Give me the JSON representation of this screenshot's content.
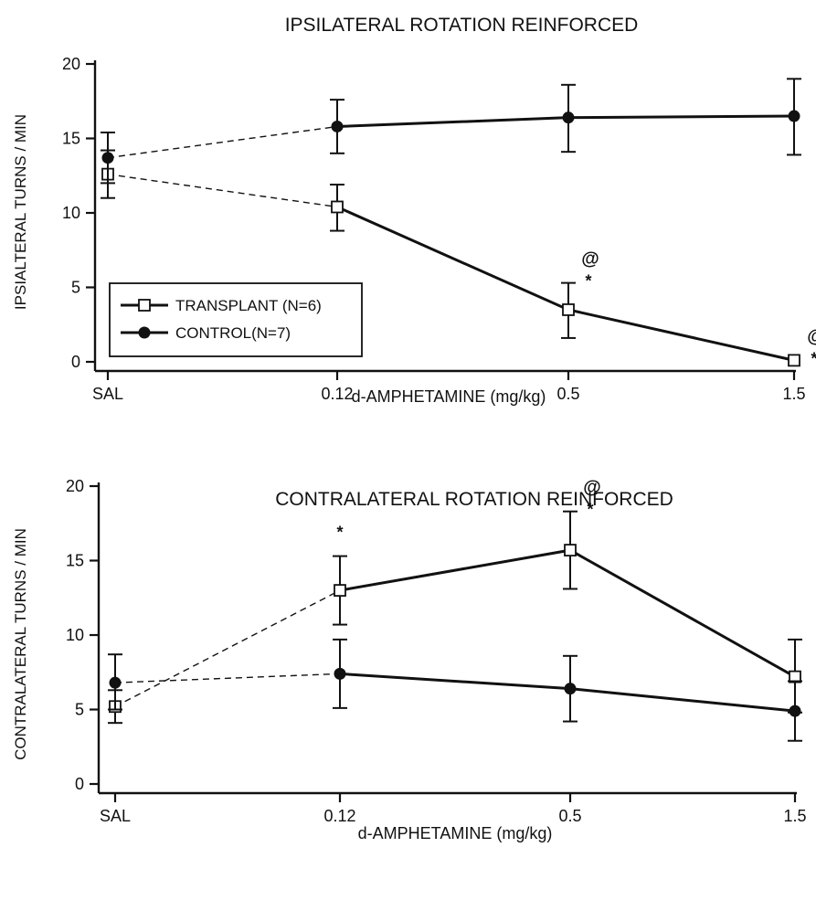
{
  "chart_data": [
    {
      "type": "line",
      "title": "IPSILATERAL ROTATION REINFORCED",
      "xlabel": "d-AMPHETAMINE  (mg/kg)",
      "ylabel": "IPSIALTERAL TURNS / MIN",
      "categories": [
        "SAL",
        "0.12",
        "0.5",
        "1.5"
      ],
      "yticks": [
        "0",
        "5",
        "10",
        "15",
        "20"
      ],
      "ylim": [
        0,
        20
      ],
      "grid": false,
      "legend_position": "bottom-left",
      "series": [
        {
          "name": "TRANSPLANT (N=6)",
          "marker": "open-square",
          "values": [
            12.6,
            10.4,
            3.5,
            0.1
          ],
          "err_low": [
            11.0,
            8.8,
            1.6,
            0.1
          ],
          "err_high": [
            14.2,
            11.9,
            5.3,
            0.1
          ],
          "marks": [
            "",
            "",
            "@*",
            "@*"
          ]
        },
        {
          "name": "CONTROL(N=7)",
          "marker": "filled-circle",
          "values": [
            13.7,
            15.8,
            16.4,
            16.5
          ],
          "err_low": [
            12.0,
            14.0,
            14.1,
            13.9
          ],
          "err_high": [
            15.4,
            17.6,
            18.6,
            19.0
          ],
          "marks": [
            "",
            "",
            "",
            ""
          ]
        }
      ],
      "dashed_segment": "SAL to 0.12"
    },
    {
      "type": "line",
      "title": "CONTRALATERAL ROTATION REINFORCED",
      "xlabel": "d-AMPHETAMINE  (mg/kg)",
      "ylabel": "CONTRALATERAL TURNS / MIN",
      "categories": [
        "SAL",
        "0.12",
        "0.5",
        "1.5"
      ],
      "yticks": [
        "0",
        "5",
        "10",
        "15",
        "20"
      ],
      "ylim": [
        0,
        20
      ],
      "grid": false,
      "series": [
        {
          "name": "TRANSPLANT",
          "marker": "open-square",
          "values": [
            5.2,
            13.0,
            15.7,
            7.2
          ],
          "err_low": [
            4.1,
            10.7,
            13.1,
            4.8
          ],
          "err_high": [
            6.3,
            15.3,
            18.3,
            9.7
          ],
          "marks": [
            "",
            "*",
            "@*",
            ""
          ]
        },
        {
          "name": "CONTROL",
          "marker": "filled-circle",
          "values": [
            6.8,
            7.4,
            6.4,
            4.9
          ],
          "err_low": [
            5.0,
            5.1,
            4.2,
            2.9
          ],
          "err_high": [
            8.7,
            9.7,
            8.6,
            6.9
          ],
          "marks": [
            "",
            "",
            "",
            ""
          ]
        }
      ],
      "dashed_segment": "SAL to 0.12"
    }
  ]
}
